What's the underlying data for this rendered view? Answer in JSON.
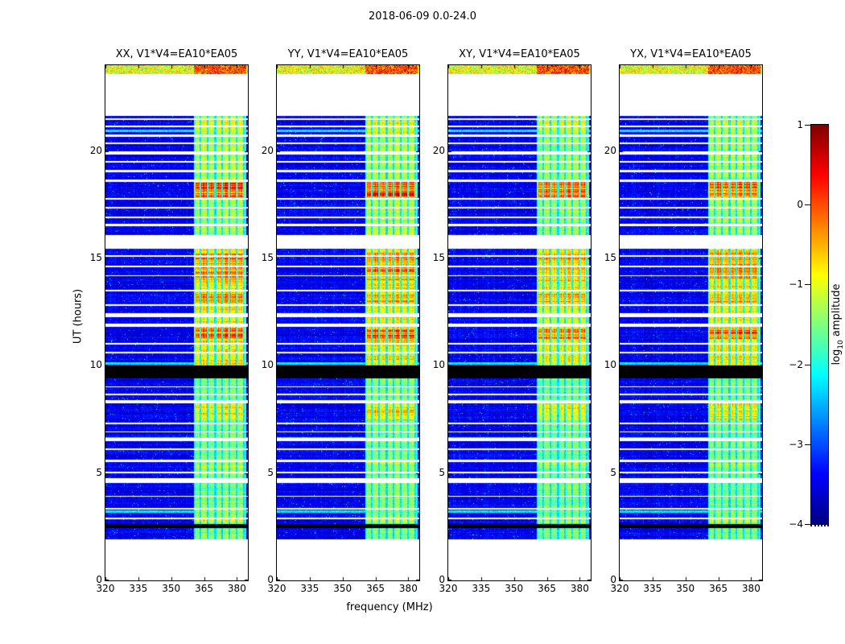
{
  "chart_data": {
    "type": "heatmap",
    "title": "2018-06-09 0.0-24.0",
    "panels": [
      {
        "title": "XX, V1*V4=EA10*EA05"
      },
      {
        "title": "YY, V1*V4=EA10*EA05"
      },
      {
        "title": "XY, V1*V4=EA10*EA05"
      },
      {
        "title": "YX, V1*V4=EA10*EA05"
      }
    ],
    "xlabel": "frequency (MHz)",
    "ylabel": "UT (hours)",
    "xlim": [
      320,
      385
    ],
    "ylim": [
      0,
      24
    ],
    "xticks": [
      320,
      335,
      350,
      365,
      380
    ],
    "yticks": [
      0,
      5,
      10,
      15,
      20
    ],
    "grid": false,
    "colorbar": {
      "label": "log10 amplitude",
      "label_pre": "log",
      "label_sub": "10",
      "label_post": " amplitude",
      "ticks": [
        1,
        0,
        -1,
        -2,
        -3,
        -4
      ],
      "vmin": -4,
      "vmax": 1,
      "colormap": "jet"
    },
    "features": {
      "rfi_band_mhz": [
        360.5,
        384.0
      ],
      "no_data_gaps_ut": [
        [
          0.0,
          1.9
        ],
        [
          15.45,
          16.1
        ],
        [
          21.65,
          23.58
        ]
      ],
      "black_bands_ut": [
        [
          2.45,
          2.62
        ],
        [
          9.4,
          10.02
        ]
      ],
      "thin_gap_rows_ut": [
        [
          2.9,
          0.04
        ],
        [
          3.35,
          0.04
        ],
        [
          3.92,
          0.03
        ],
        [
          4.65,
          0.1
        ],
        [
          5.02,
          0.04
        ],
        [
          5.58,
          0.06
        ],
        [
          6.12,
          0.04
        ],
        [
          6.56,
          0.08
        ],
        [
          6.92,
          0.03
        ],
        [
          7.3,
          0.04
        ],
        [
          8.32,
          0.07
        ],
        [
          8.66,
          0.04
        ],
        [
          9.02,
          0.03
        ],
        [
          10.6,
          0.04
        ],
        [
          11.02,
          0.05
        ],
        [
          11.9,
          0.07
        ],
        [
          12.36,
          0.09
        ],
        [
          12.82,
          0.04
        ],
        [
          13.5,
          0.04
        ],
        [
          14.2,
          0.03
        ],
        [
          14.62,
          0.05
        ],
        [
          15.12,
          0.03
        ],
        [
          16.56,
          0.05
        ],
        [
          16.92,
          0.04
        ],
        [
          17.36,
          0.05
        ],
        [
          17.76,
          0.04
        ],
        [
          18.62,
          0.07
        ],
        [
          19.06,
          0.05
        ],
        [
          19.5,
          0.04
        ],
        [
          19.92,
          0.07
        ],
        [
          20.36,
          0.04
        ],
        [
          20.72,
          0.05
        ],
        [
          21.16,
          0.04
        ],
        [
          21.48,
          0.04
        ]
      ],
      "band_segments": [
        {
          "ut": [
            1.9,
            9.4
          ],
          "level": 0.42,
          "bright_rows_ut": [
            [
              2.7,
              3.0,
              0.58
            ],
            [
              5.25,
              5.5,
              0.55
            ],
            [
              7.45,
              8.25,
              0.7
            ]
          ]
        },
        {
          "ut": [
            10.02,
            15.45
          ],
          "level": 0.68,
          "bright_rows_ut": [
            [
              11.25,
              11.72,
              0.95
            ],
            [
              12.95,
              13.35,
              0.85
            ],
            [
              13.95,
              15.25,
              0.88
            ]
          ]
        },
        {
          "ut": [
            16.1,
            21.65
          ],
          "level": 0.5,
          "bright_rows_ut": [
            [
              17.85,
              18.55,
              1.0
            ],
            [
              20.85,
              21.4,
              0.62
            ]
          ]
        },
        {
          "ut": [
            23.58,
            24.0
          ],
          "level": 0.85,
          "full_width": true,
          "bright_rows_ut": []
        }
      ],
      "cyan_rows_ut": [
        3.2,
        6.6,
        10.12,
        20.95
      ]
    }
  }
}
